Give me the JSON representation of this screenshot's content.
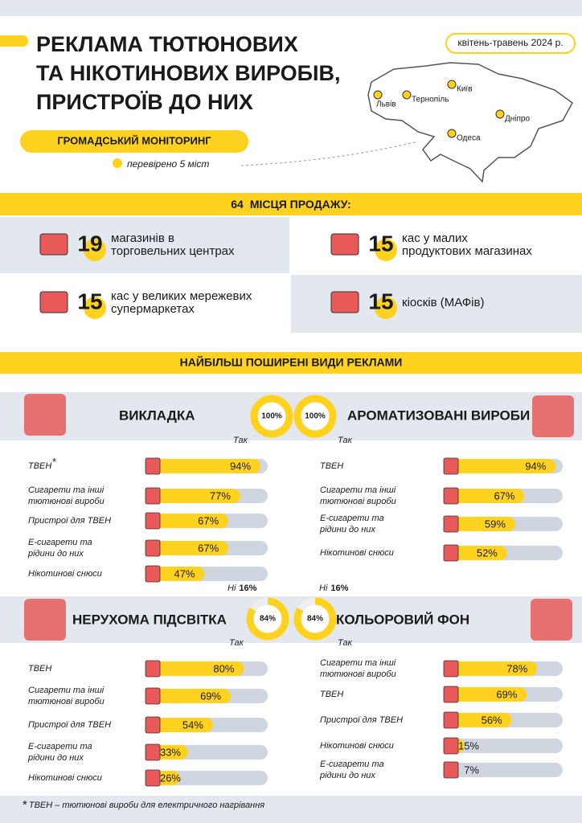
{
  "header": {
    "title_lines": [
      "РЕКЛАМА ТЮТЮНОВИХ",
      "ТА НІКОТИНОВИХ ВИРОБІВ,",
      "ПРИСТРОЇВ ДО НИХ"
    ],
    "date": "квітень-травень 2024 р.",
    "badge": "ГРОМАДСЬКИЙ МОНІТОРИНГ",
    "checked": "перевірено 5 міст",
    "cities": [
      "Львів",
      "Тернопіль",
      "Київ",
      "Дніпро",
      "Одеса"
    ]
  },
  "sales": {
    "total": 64,
    "title": "МІСЦЯ ПРОДАЖУ:",
    "items": [
      {
        "count": 19,
        "text_lines": [
          "магазинів в",
          "торговельних центрах"
        ]
      },
      {
        "count": 15,
        "text_lines": [
          "кас у малих",
          "продуктових магазинах"
        ]
      },
      {
        "count": 15,
        "text_lines": [
          "кас у великих мережевих",
          "супермаркетах"
        ]
      },
      {
        "count": 15,
        "text_lines": [
          "кіосків (МАФів)"
        ]
      }
    ]
  },
  "ads": {
    "title": "НАЙБІЛЬШ ПОШИРЕНІ ВИДИ РЕКЛАМИ",
    "note_mark": "*",
    "panels": [
      {
        "title": "ВИКЛАДКА",
        "yes_value": 100,
        "yes_label": "100%",
        "yes_text": "Так",
        "items": [
          {
            "label_lines": [
              "ТВЕН"
            ],
            "value": 94,
            "value_label": "94%"
          },
          {
            "label_lines": [
              "Сигарети та інші",
              "тютюнові вироби"
            ],
            "value": 77,
            "value_label": "77%"
          },
          {
            "label_lines": [
              "Пристрої для ТВЕН"
            ],
            "value": 67,
            "value_label": "67%"
          },
          {
            "label_lines": [
              "Е-сигарети та",
              "рідини до них"
            ],
            "value": 67,
            "value_label": "67%"
          },
          {
            "label_lines": [
              "Нікотинові снюси"
            ],
            "value": 47,
            "value_label": "47%"
          }
        ]
      },
      {
        "title": "АРОМАТИЗОВАНІ ВИРОБИ",
        "yes_value": 100,
        "yes_label": "100%",
        "yes_text": "Так",
        "items": [
          {
            "label_lines": [
              "ТВЕН"
            ],
            "value": 94,
            "value_label": "94%"
          },
          {
            "label_lines": [
              "Сигарети та інші",
              "тютюнові вироби"
            ],
            "value": 67,
            "value_label": "67%"
          },
          {
            "label_lines": [
              "Е-сигарети та",
              "рідини до них"
            ],
            "value": 59,
            "value_label": "59%"
          },
          {
            "label_lines": [
              "Нікотинові снюси"
            ],
            "value": 52,
            "value_label": "52%"
          }
        ]
      },
      {
        "title": "НЕРУХОМА ПІДСВІТКА",
        "yes_value": 84,
        "yes_label": "84%",
        "yes_text": "Так",
        "no_value": 16,
        "no_label": "16%",
        "no_text": "Ні",
        "items": [
          {
            "label_lines": [
              "ТВЕН"
            ],
            "value": 80,
            "value_label": "80%"
          },
          {
            "label_lines": [
              "Сигарети та інші",
              "тютюнові вироби"
            ],
            "value": 69,
            "value_label": "69%"
          },
          {
            "label_lines": [
              "Пристрої для ТВЕН"
            ],
            "value": 54,
            "value_label": "54%"
          },
          {
            "label_lines": [
              "Е-сигарети та",
              "рідини до них"
            ],
            "value": 33,
            "value_label": "33%"
          },
          {
            "label_lines": [
              "Нікотинові снюси"
            ],
            "value": 26,
            "value_label": "26%"
          }
        ]
      },
      {
        "title": "КОЛЬОРОВИЙ ФОН",
        "yes_value": 84,
        "yes_label": "84%",
        "yes_text": "Так",
        "no_value": 16,
        "no_label": "16%",
        "no_text": "Ні",
        "items": [
          {
            "label_lines": [
              "Сигарети та інші",
              "тютюнові вироби"
            ],
            "value": 78,
            "value_label": "78%"
          },
          {
            "label_lines": [
              "ТВЕН"
            ],
            "value": 69,
            "value_label": "69%"
          },
          {
            "label_lines": [
              "Пристрої для ТВЕН"
            ],
            "value": 56,
            "value_label": "56%"
          },
          {
            "label_lines": [
              "Нікотинові снюси"
            ],
            "value": 15,
            "value_label": "15%"
          },
          {
            "label_lines": [
              "Е-сигарети та",
              "рідини до них"
            ],
            "value": 7,
            "value_label": "7%"
          }
        ]
      }
    ]
  },
  "footnote": "ТВЕН – тютюнові вироби для електричного нагрівання"
}
